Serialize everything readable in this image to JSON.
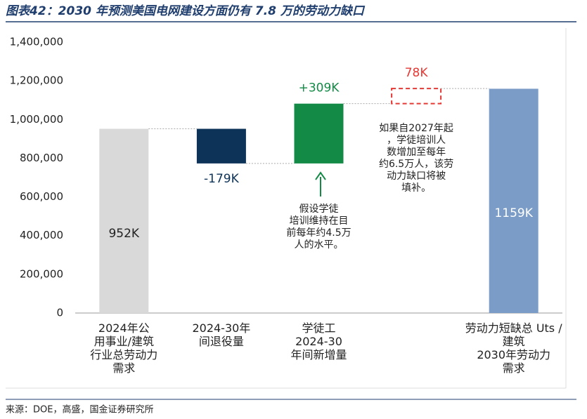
{
  "header": {
    "title": "图表42：2030 年预测美国电网建设方面仍有 7.8 万的劳动力缺口"
  },
  "chart_data": {
    "type": "waterfall",
    "categories": [
      "2024年公\n用事业/建筑\n行业总劳动力\n需求",
      "2024-30年\n间退役量",
      "学徒工\n2024-30\n年间新增量",
      null,
      "劳动力短缺总 Uts /\n建筑\n2030年劳动力\n需求"
    ],
    "values": [
      952000,
      -179000,
      309000,
      78000,
      1159000
    ],
    "value_labels": [
      "952K",
      "-179K",
      "+309K",
      "78K",
      "1159K"
    ],
    "measures": [
      "absolute",
      "relative",
      "relative",
      "relative",
      "total"
    ],
    "colors": [
      "#d9d9d9",
      "#0e3359",
      "#138a46",
      "#e53935",
      "#7a9cc6"
    ],
    "label_colors": [
      "#222222",
      "#0e3359",
      "#138a46",
      "#e53935",
      "#ffffff"
    ],
    "dashed": [
      false,
      false,
      false,
      true,
      false
    ],
    "ylim": [
      0,
      1400000
    ],
    "yticks": [
      {
        "value": 0,
        "label": "0"
      },
      {
        "value": 200000,
        "label": "200,000"
      },
      {
        "value": 400000,
        "label": "400,000"
      },
      {
        "value": 600000,
        "label": "600,000"
      },
      {
        "value": 800000,
        "label": "800,000"
      },
      {
        "value": 1000000,
        "label": "1,000,000"
      },
      {
        "value": 1200000,
        "label": "1,200,000"
      },
      {
        "value": 1400000,
        "label": "1,400,000"
      }
    ],
    "annotations": [
      "假设学徒\n培训维持在目\n前每年约4.5万\n人的水平。",
      "如果自2027年起\n，学徒培训人\n数增加至每年\n约6.5万人，该劳\n动力缺口将被\n填补。"
    ]
  },
  "footer": {
    "source": "来源：DOE，高盛，国金证券研究所"
  }
}
